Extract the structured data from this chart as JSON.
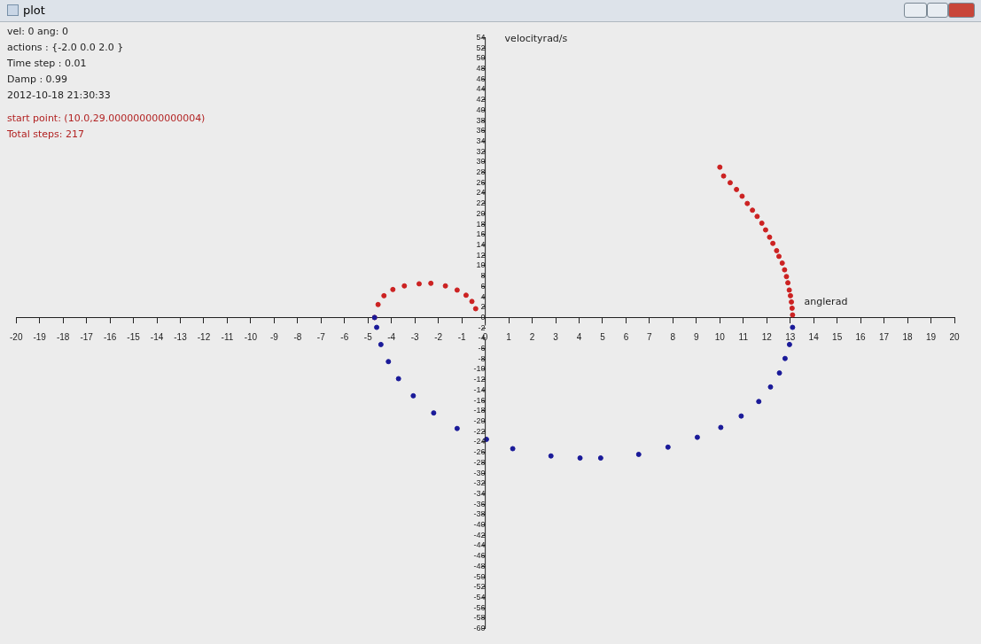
{
  "chart_data": {
    "type": "scatter",
    "title": "plot",
    "xlabel": "anglerad",
    "ylabel": "velocityrad/s",
    "annotations": [
      "vel: 0  ang: 0",
      "actions :  {-2.0 0.0 2.0 }",
      "Time step :  0.01",
      "Damp :  0.99",
      "2012-10-18 21:30:33",
      "start point: (10.0,29.000000000000004)",
      "Total steps: 217"
    ],
    "xlim": [
      -20,
      20
    ],
    "ylim": [
      -60,
      54
    ],
    "xticks": [
      -20,
      -19,
      -18,
      -17,
      -16,
      -15,
      -14,
      -13,
      -12,
      -11,
      -10,
      -9,
      -8,
      -7,
      -6,
      -5,
      -4,
      -3,
      -2,
      -1,
      0,
      1,
      2,
      3,
      4,
      5,
      6,
      7,
      8,
      9,
      10,
      11,
      12,
      13,
      14,
      15,
      16,
      17,
      18,
      19,
      20
    ],
    "yticks": [
      -60,
      -58,
      -56,
      -54,
      -52,
      -50,
      -48,
      -46,
      -44,
      -42,
      -40,
      -38,
      -36,
      -34,
      -32,
      -30,
      -28,
      -26,
      -24,
      -22,
      -20,
      -18,
      -16,
      -14,
      -12,
      -10,
      -8,
      -6,
      -4,
      -2,
      0,
      2,
      4,
      6,
      8,
      10,
      12,
      14,
      16,
      18,
      20,
      22,
      24,
      26,
      28,
      30,
      32,
      34,
      36,
      38,
      40,
      42,
      44,
      46,
      48,
      50,
      52,
      54
    ],
    "grid": false,
    "legend": false,
    "marker": "circle",
    "series": [
      {
        "color": "#cc2222",
        "x": [
          10,
          10.16,
          10.44,
          10.71,
          10.95,
          11.17,
          11.39,
          11.59,
          11.79,
          11.95,
          12.12,
          12.26,
          12.42,
          12.52,
          12.66,
          12.76,
          12.84,
          12.9,
          12.96,
          13.01,
          13.05,
          13.08,
          13.1
        ],
        "values": [
          29,
          27.3,
          26,
          24.7,
          23.4,
          22,
          20.7,
          19.5,
          18.2,
          16.9,
          15.5,
          14.3,
          12.9,
          11.8,
          10.5,
          9.2,
          7.9,
          6.7,
          5.3,
          4.2,
          3,
          1.8,
          0.5
        ]
      },
      {
        "color": "#1a1a99",
        "x": [
          13.1,
          12.97,
          12.78,
          12.54,
          12.16,
          11.66,
          10.91,
          10.04,
          9.04,
          7.79,
          6.54,
          4.92,
          4.04,
          2.8,
          1.17,
          0.05,
          -1.2,
          -2.2,
          -3.07,
          -3.7,
          -4.13,
          -4.45,
          -4.63,
          -4.72
        ],
        "values": [
          -1.9,
          -5.2,
          -7.9,
          -10.7,
          -13.4,
          -16.2,
          -19,
          -21.2,
          -23.1,
          -25,
          -26.4,
          -27.1,
          -27.1,
          -26.7,
          -25.3,
          -23.5,
          -21.4,
          -18.4,
          -15.1,
          -11.8,
          -8.5,
          -5.2,
          -1.9,
          0
        ]
      },
      {
        "color": "#cc2222",
        "x": [
          -4.72,
          -4.57,
          -4.32,
          -3.94,
          -3.45,
          -2.82,
          -2.32,
          -1.7,
          -1.2,
          -0.82,
          -0.57,
          -0.41
        ],
        "values": [
          0,
          2.5,
          4.2,
          5.4,
          6.1,
          6.5,
          6.6,
          6.1,
          5.3,
          4.3,
          3.1,
          1.7
        ]
      }
    ]
  }
}
